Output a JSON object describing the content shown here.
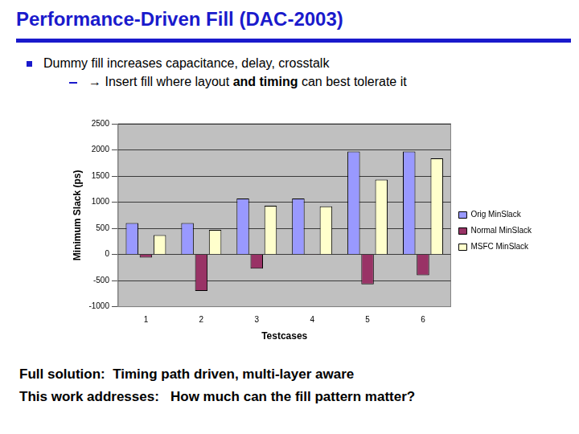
{
  "slide": {
    "title": "Performance-Driven Fill (DAC-2003)",
    "bullet": "Dummy fill increases capacitance, delay, crosstalk",
    "sub_bullet": [
      {
        "text": "→ Insert fill where layout "
      },
      {
        "text": "and timing",
        "bold": true
      },
      {
        "text": " can best tolerate it"
      }
    ],
    "footer": [
      "Full solution:  Timing path driven, multi-layer aware",
      "This work addresses:   How much can the fill pattern matter?"
    ]
  },
  "chart_data": {
    "type": "bar",
    "x_label": "Testcases",
    "y_label": "Minimum Slack (ps)",
    "categories": [
      "1",
      "2",
      "3",
      "4",
      "5",
      "6"
    ],
    "series": [
      {
        "name": "Orig MinSlack",
        "color": "#9999ff",
        "values": [
          600,
          600,
          1070,
          1070,
          1970,
          1970
        ]
      },
      {
        "name": "Normal MinSlack",
        "color": "#993366",
        "values": [
          -60,
          -700,
          -270,
          10,
          -570,
          -400
        ]
      },
      {
        "name": "MSFC MinSlack",
        "color": "#ffffcc",
        "values": [
          370,
          470,
          930,
          920,
          1430,
          1840
        ]
      }
    ],
    "ylim": [
      -1000,
      2500
    ],
    "yticks": [
      -1000,
      -500,
      0,
      500,
      1000,
      1500,
      2000,
      2500
    ],
    "grid": true,
    "legend": "right"
  }
}
